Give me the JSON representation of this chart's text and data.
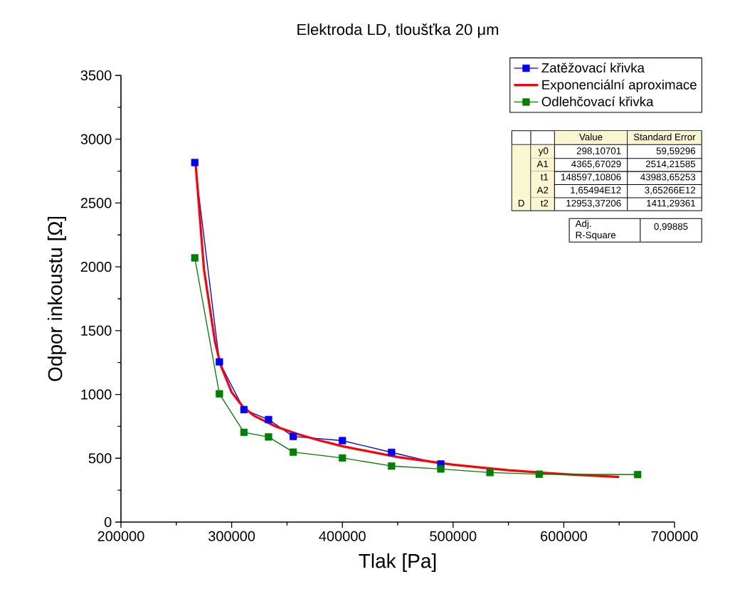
{
  "chart_data": {
    "type": "line",
    "title": "Elektroda LD, tloušťka 20 μm",
    "xlabel": "Tlak [Pa]",
    "ylabel": "Odpor inkoustu [Ω]",
    "xlim": [
      200000,
      700000
    ],
    "ylim": [
      0,
      3500
    ],
    "xticks": [
      200000,
      300000,
      400000,
      500000,
      600000,
      700000
    ],
    "yticks": [
      0,
      500,
      1000,
      1500,
      2000,
      2500,
      3000,
      3500
    ],
    "grid": false,
    "legend": "top right",
    "line_style": "solid",
    "series": [
      {
        "name": "Zatěžovací křivka",
        "color": "#0000ff",
        "marker": "square",
        "x": [
          266700,
          288900,
          311100,
          333300,
          355600,
          400000,
          444400,
          488900
        ],
        "values": [
          2817,
          1255,
          881,
          803,
          671,
          638,
          546,
          455
        ]
      },
      {
        "name": "Exponenciální aproximace",
        "color": "#ff0000",
        "marker": "none",
        "x": [
          267500,
          275000,
          285000,
          290000,
          300000,
          310000,
          320000,
          340000,
          360000,
          380000,
          400000,
          450000,
          500000,
          550000,
          600000,
          650000
        ],
        "values": [
          2802,
          1979,
          1410,
          1231,
          1017,
          906,
          834,
          748,
          688,
          638,
          594,
          509,
          449,
          406,
          375,
          353
        ]
      },
      {
        "name": "Odlehčovací křivka",
        "color": "#008000",
        "marker": "square",
        "x": [
          266700,
          288900,
          311100,
          333300,
          355600,
          400000,
          444400,
          488900,
          533300,
          577800,
          666700
        ],
        "values": [
          2070,
          1005,
          703,
          667,
          548,
          502,
          439,
          416,
          388,
          375,
          372
        ]
      }
    ],
    "annotations": [
      "Value",
      "Standard Error",
      "y0",
      "298,10701",
      "59,59296",
      "A1",
      "4365,67029",
      "2514,21585",
      "t1",
      "148597,10806",
      "43983,65253",
      "A2",
      "1,65494E12",
      "3,65266E12",
      "t2",
      "12953,37206",
      "1411,29361",
      "D",
      "Adj. R-Square",
      "0,99885"
    ]
  }
}
